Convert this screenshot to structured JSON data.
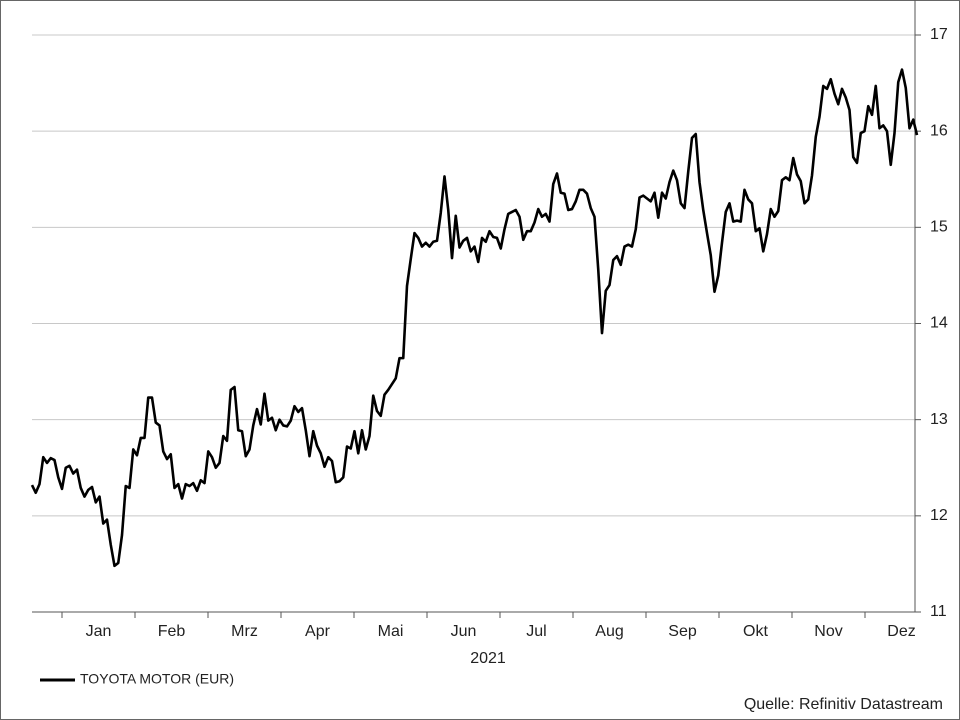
{
  "chart_data": {
    "type": "line",
    "series": [
      {
        "name": "TOYOTA MOTOR (EUR)",
        "color": "#000000",
        "values": [
          12.32,
          12.24,
          12.33,
          12.61,
          12.55,
          12.6,
          12.58,
          12.4,
          12.28,
          12.5,
          12.52,
          12.44,
          12.48,
          12.29,
          12.2,
          12.27,
          12.3,
          12.14,
          12.2,
          11.92,
          11.96,
          11.7,
          11.48,
          11.51,
          11.8,
          12.31,
          12.29,
          12.69,
          12.63,
          12.81,
          12.81,
          13.23,
          13.23,
          12.97,
          12.94,
          12.67,
          12.59,
          12.64,
          12.29,
          12.33,
          12.18,
          12.33,
          12.31,
          12.34,
          12.26,
          12.37,
          12.34,
          12.67,
          12.61,
          12.5,
          12.55,
          12.83,
          12.78,
          13.31,
          13.34,
          12.89,
          12.88,
          12.62,
          12.69,
          12.94,
          13.11,
          12.95,
          13.27,
          12.99,
          13.02,
          12.89,
          13.0,
          12.94,
          12.93,
          12.99,
          13.14,
          13.08,
          13.12,
          12.89,
          12.62,
          12.88,
          12.73,
          12.65,
          12.51,
          12.61,
          12.57,
          12.35,
          12.36,
          12.4,
          12.72,
          12.7,
          12.88,
          12.65,
          12.89,
          12.69,
          12.83,
          13.25,
          13.09,
          13.04,
          13.26,
          13.31,
          13.37,
          13.43,
          13.64,
          13.64,
          14.39,
          14.67,
          14.94,
          14.89,
          14.8,
          14.84,
          14.8,
          14.85,
          14.86,
          15.15,
          15.53,
          15.18,
          14.68,
          15.12,
          14.79,
          14.86,
          14.89,
          14.75,
          14.8,
          14.64,
          14.89,
          14.85,
          14.96,
          14.9,
          14.89,
          14.78,
          14.98,
          15.14,
          15.16,
          15.18,
          15.11,
          14.87,
          14.96,
          14.96,
          15.05,
          15.19,
          15.11,
          15.14,
          15.06,
          15.45,
          15.56,
          15.36,
          15.35,
          15.18,
          15.19,
          15.27,
          15.39,
          15.39,
          15.35,
          15.2,
          15.11,
          14.56,
          13.9,
          14.34,
          14.4,
          14.66,
          14.7,
          14.61,
          14.8,
          14.82,
          14.8,
          14.98,
          15.31,
          15.33,
          15.3,
          15.27,
          15.36,
          15.1,
          15.36,
          15.3,
          15.47,
          15.59,
          15.49,
          15.25,
          15.2,
          15.58,
          15.93,
          15.97,
          15.47,
          15.18,
          14.94,
          14.71,
          14.33,
          14.5,
          14.84,
          15.16,
          15.25,
          15.06,
          15.07,
          15.06,
          15.39,
          15.29,
          15.25,
          14.96,
          14.99,
          14.75,
          14.93,
          15.19,
          15.11,
          15.17,
          15.49,
          15.52,
          15.49,
          15.72,
          15.55,
          15.48,
          15.25,
          15.29,
          15.54,
          15.94,
          16.15,
          16.47,
          16.44,
          16.54,
          16.39,
          16.28,
          16.44,
          16.35,
          16.22,
          15.73,
          15.67,
          15.98,
          16.0,
          16.26,
          16.17,
          16.47,
          16.03,
          16.06,
          16.0,
          15.65,
          15.98,
          16.51,
          16.64,
          16.45,
          16.03,
          16.12,
          15.96
        ]
      }
    ],
    "x_tick_labels": [
      "Jan",
      "Feb",
      "Mrz",
      "Apr",
      "Mai",
      "Jun",
      "Jul",
      "Aug",
      "Sep",
      "Okt",
      "Nov",
      "Dez"
    ],
    "x_axis_label": "2021",
    "ylim": [
      11,
      17
    ],
    "yticks": [
      11,
      12,
      13,
      14,
      15,
      16,
      17
    ],
    "grid": true,
    "source": "Quelle: Refinitiv Datastream"
  }
}
